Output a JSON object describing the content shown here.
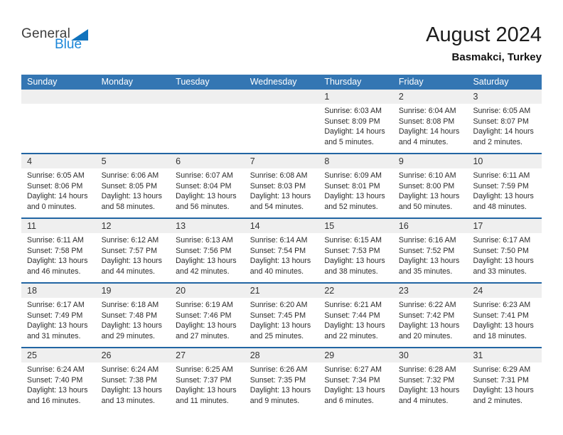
{
  "logo": {
    "part1": "General",
    "part2": "Blue"
  },
  "header": {
    "title": "August 2024",
    "location": "Basmakci, Turkey"
  },
  "colors": {
    "header_blue": "#3476b3",
    "separator_blue": "#2265a3",
    "strip_gray": "#efefef",
    "logo_blue": "#1b86d8",
    "logo_triangle_blue": "#1173bd"
  },
  "weekday_headers": [
    "Sunday",
    "Monday",
    "Tuesday",
    "Wednesday",
    "Thursday",
    "Friday",
    "Saturday"
  ],
  "weeks": [
    {
      "days": [
        null,
        null,
        null,
        null,
        {
          "day": "1",
          "sunrise": "Sunrise: 6:03 AM",
          "sunset": "Sunset: 8:09 PM",
          "daylight1": "Daylight: 14 hours",
          "daylight2": "and 5 minutes."
        },
        {
          "day": "2",
          "sunrise": "Sunrise: 6:04 AM",
          "sunset": "Sunset: 8:08 PM",
          "daylight1": "Daylight: 14 hours",
          "daylight2": "and 4 minutes."
        },
        {
          "day": "3",
          "sunrise": "Sunrise: 6:05 AM",
          "sunset": "Sunset: 8:07 PM",
          "daylight1": "Daylight: 14 hours",
          "daylight2": "and 2 minutes."
        }
      ]
    },
    {
      "days": [
        {
          "day": "4",
          "sunrise": "Sunrise: 6:05 AM",
          "sunset": "Sunset: 8:06 PM",
          "daylight1": "Daylight: 14 hours",
          "daylight2": "and 0 minutes."
        },
        {
          "day": "5",
          "sunrise": "Sunrise: 6:06 AM",
          "sunset": "Sunset: 8:05 PM",
          "daylight1": "Daylight: 13 hours",
          "daylight2": "and 58 minutes."
        },
        {
          "day": "6",
          "sunrise": "Sunrise: 6:07 AM",
          "sunset": "Sunset: 8:04 PM",
          "daylight1": "Daylight: 13 hours",
          "daylight2": "and 56 minutes."
        },
        {
          "day": "7",
          "sunrise": "Sunrise: 6:08 AM",
          "sunset": "Sunset: 8:03 PM",
          "daylight1": "Daylight: 13 hours",
          "daylight2": "and 54 minutes."
        },
        {
          "day": "8",
          "sunrise": "Sunrise: 6:09 AM",
          "sunset": "Sunset: 8:01 PM",
          "daylight1": "Daylight: 13 hours",
          "daylight2": "and 52 minutes."
        },
        {
          "day": "9",
          "sunrise": "Sunrise: 6:10 AM",
          "sunset": "Sunset: 8:00 PM",
          "daylight1": "Daylight: 13 hours",
          "daylight2": "and 50 minutes."
        },
        {
          "day": "10",
          "sunrise": "Sunrise: 6:11 AM",
          "sunset": "Sunset: 7:59 PM",
          "daylight1": "Daylight: 13 hours",
          "daylight2": "and 48 minutes."
        }
      ]
    },
    {
      "days": [
        {
          "day": "11",
          "sunrise": "Sunrise: 6:11 AM",
          "sunset": "Sunset: 7:58 PM",
          "daylight1": "Daylight: 13 hours",
          "daylight2": "and 46 minutes."
        },
        {
          "day": "12",
          "sunrise": "Sunrise: 6:12 AM",
          "sunset": "Sunset: 7:57 PM",
          "daylight1": "Daylight: 13 hours",
          "daylight2": "and 44 minutes."
        },
        {
          "day": "13",
          "sunrise": "Sunrise: 6:13 AM",
          "sunset": "Sunset: 7:56 PM",
          "daylight1": "Daylight: 13 hours",
          "daylight2": "and 42 minutes."
        },
        {
          "day": "14",
          "sunrise": "Sunrise: 6:14 AM",
          "sunset": "Sunset: 7:54 PM",
          "daylight1": "Daylight: 13 hours",
          "daylight2": "and 40 minutes."
        },
        {
          "day": "15",
          "sunrise": "Sunrise: 6:15 AM",
          "sunset": "Sunset: 7:53 PM",
          "daylight1": "Daylight: 13 hours",
          "daylight2": "and 38 minutes."
        },
        {
          "day": "16",
          "sunrise": "Sunrise: 6:16 AM",
          "sunset": "Sunset: 7:52 PM",
          "daylight1": "Daylight: 13 hours",
          "daylight2": "and 35 minutes."
        },
        {
          "day": "17",
          "sunrise": "Sunrise: 6:17 AM",
          "sunset": "Sunset: 7:50 PM",
          "daylight1": "Daylight: 13 hours",
          "daylight2": "and 33 minutes."
        }
      ]
    },
    {
      "days": [
        {
          "day": "18",
          "sunrise": "Sunrise: 6:17 AM",
          "sunset": "Sunset: 7:49 PM",
          "daylight1": "Daylight: 13 hours",
          "daylight2": "and 31 minutes."
        },
        {
          "day": "19",
          "sunrise": "Sunrise: 6:18 AM",
          "sunset": "Sunset: 7:48 PM",
          "daylight1": "Daylight: 13 hours",
          "daylight2": "and 29 minutes."
        },
        {
          "day": "20",
          "sunrise": "Sunrise: 6:19 AM",
          "sunset": "Sunset: 7:46 PM",
          "daylight1": "Daylight: 13 hours",
          "daylight2": "and 27 minutes."
        },
        {
          "day": "21",
          "sunrise": "Sunrise: 6:20 AM",
          "sunset": "Sunset: 7:45 PM",
          "daylight1": "Daylight: 13 hours",
          "daylight2": "and 25 minutes."
        },
        {
          "day": "22",
          "sunrise": "Sunrise: 6:21 AM",
          "sunset": "Sunset: 7:44 PM",
          "daylight1": "Daylight: 13 hours",
          "daylight2": "and 22 minutes."
        },
        {
          "day": "23",
          "sunrise": "Sunrise: 6:22 AM",
          "sunset": "Sunset: 7:42 PM",
          "daylight1": "Daylight: 13 hours",
          "daylight2": "and 20 minutes."
        },
        {
          "day": "24",
          "sunrise": "Sunrise: 6:23 AM",
          "sunset": "Sunset: 7:41 PM",
          "daylight1": "Daylight: 13 hours",
          "daylight2": "and 18 minutes."
        }
      ]
    },
    {
      "days": [
        {
          "day": "25",
          "sunrise": "Sunrise: 6:24 AM",
          "sunset": "Sunset: 7:40 PM",
          "daylight1": "Daylight: 13 hours",
          "daylight2": "and 16 minutes."
        },
        {
          "day": "26",
          "sunrise": "Sunrise: 6:24 AM",
          "sunset": "Sunset: 7:38 PM",
          "daylight1": "Daylight: 13 hours",
          "daylight2": "and 13 minutes."
        },
        {
          "day": "27",
          "sunrise": "Sunrise: 6:25 AM",
          "sunset": "Sunset: 7:37 PM",
          "daylight1": "Daylight: 13 hours",
          "daylight2": "and 11 minutes."
        },
        {
          "day": "28",
          "sunrise": "Sunrise: 6:26 AM",
          "sunset": "Sunset: 7:35 PM",
          "daylight1": "Daylight: 13 hours",
          "daylight2": "and 9 minutes."
        },
        {
          "day": "29",
          "sunrise": "Sunrise: 6:27 AM",
          "sunset": "Sunset: 7:34 PM",
          "daylight1": "Daylight: 13 hours",
          "daylight2": "and 6 minutes."
        },
        {
          "day": "30",
          "sunrise": "Sunrise: 6:28 AM",
          "sunset": "Sunset: 7:32 PM",
          "daylight1": "Daylight: 13 hours",
          "daylight2": "and 4 minutes."
        },
        {
          "day": "31",
          "sunrise": "Sunrise: 6:29 AM",
          "sunset": "Sunset: 7:31 PM",
          "daylight1": "Daylight: 13 hours",
          "daylight2": "and 2 minutes."
        }
      ]
    }
  ]
}
